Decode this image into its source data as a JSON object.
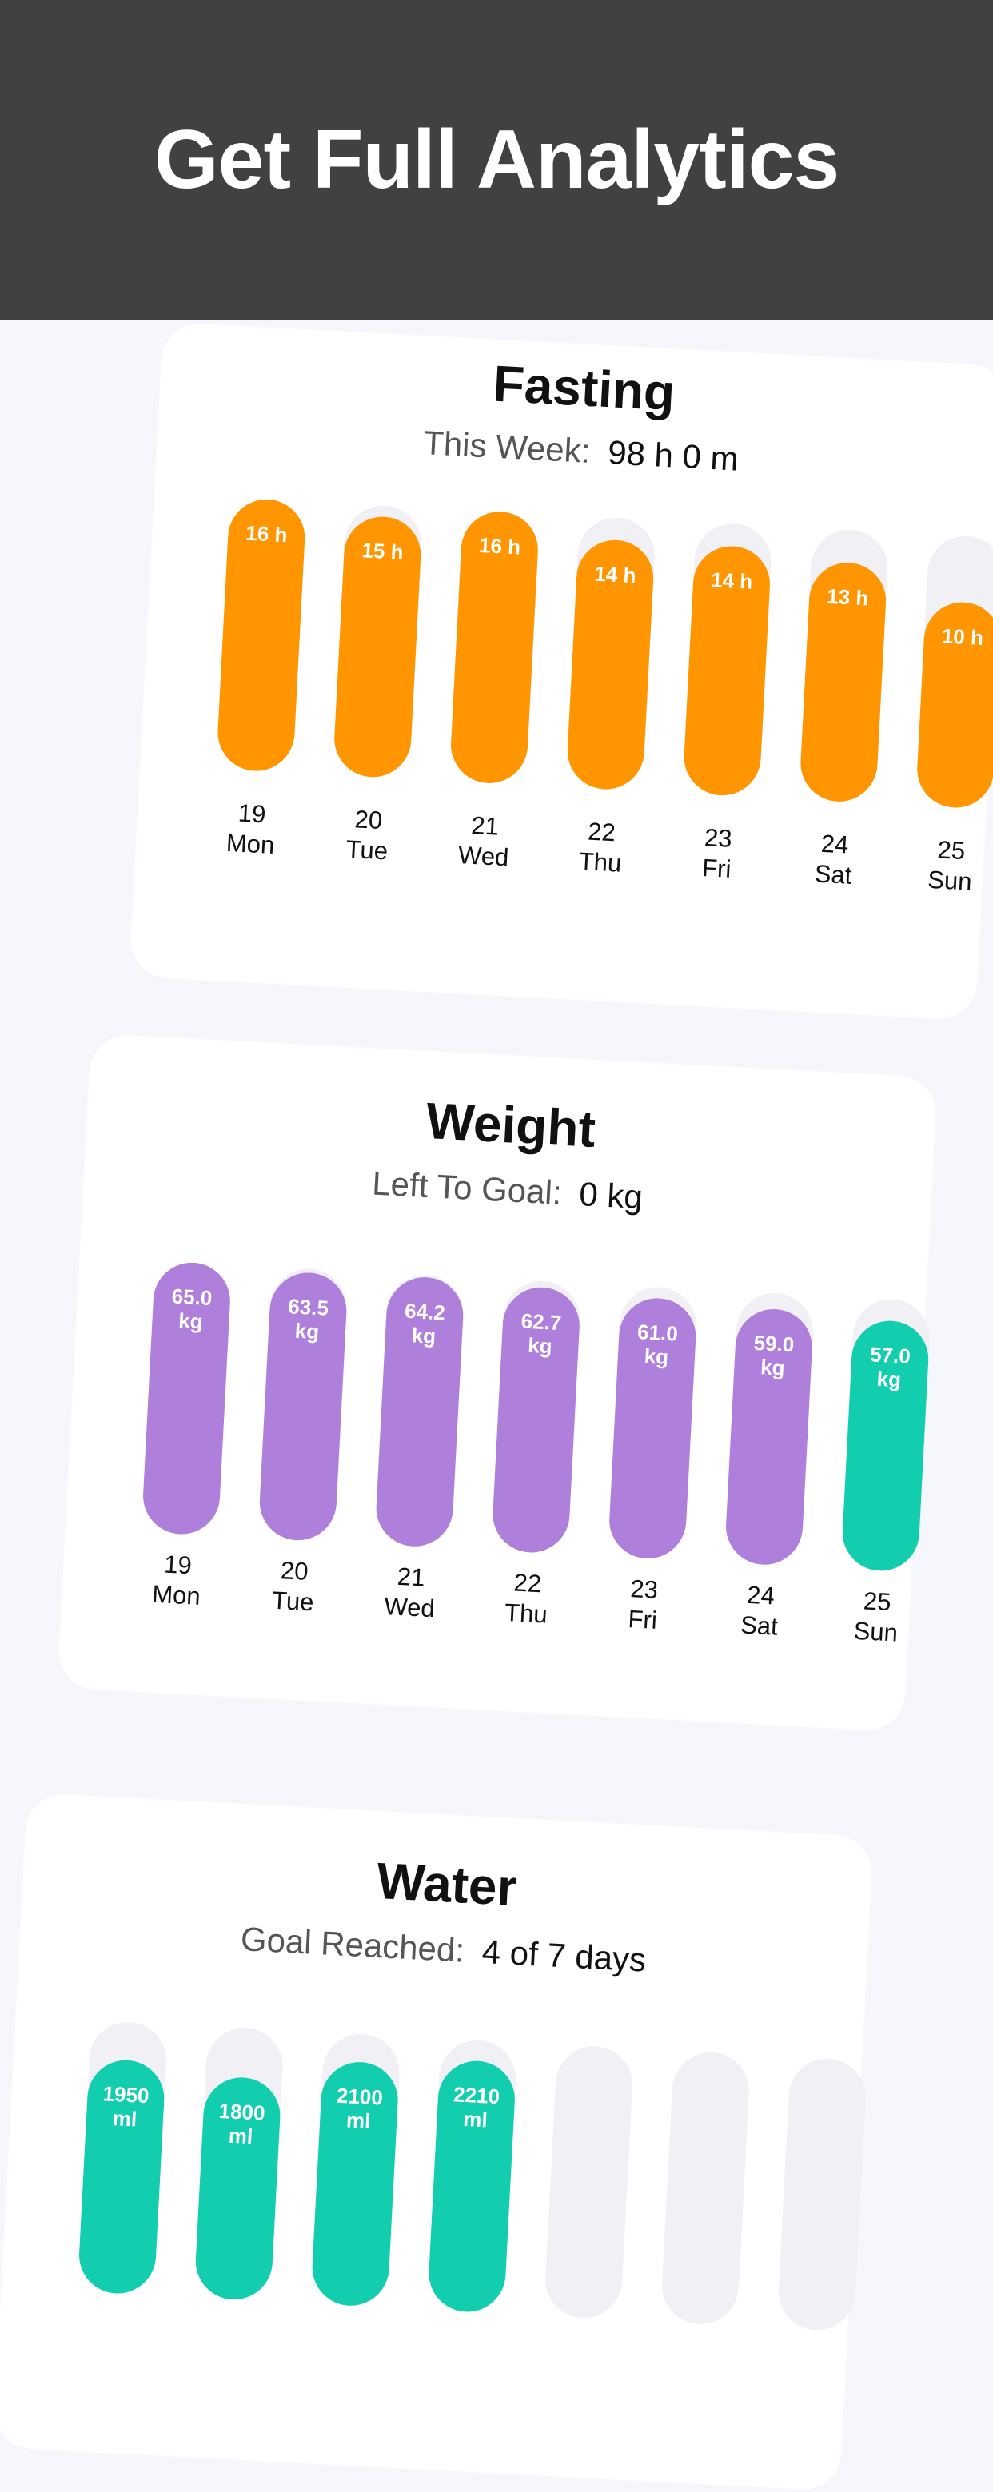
{
  "header": {
    "title": "Get Full Analytics"
  },
  "colors": {
    "fasting": "#ff9500",
    "weight": "#af7fdc",
    "goal": "#12ceae",
    "track": "#f0f0f5"
  },
  "cards": [
    {
      "title": "Fasting",
      "sub_label": "This Week:",
      "sub_value": "98 h 0 m",
      "max": 16,
      "bars": [
        {
          "date": "19",
          "day": "Mon",
          "value": 16,
          "label": "16 h",
          "color": "fasting"
        },
        {
          "date": "20",
          "day": "Tue",
          "value": 15,
          "label": "15 h",
          "color": "fasting"
        },
        {
          "date": "21",
          "day": "Wed",
          "value": 16,
          "label": "16 h",
          "color": "fasting"
        },
        {
          "date": "22",
          "day": "Thu",
          "value": 14,
          "label": "14 h",
          "color": "fasting"
        },
        {
          "date": "23",
          "day": "Fri",
          "value": 14,
          "label": "14 h",
          "color": "fasting"
        },
        {
          "date": "24",
          "day": "Sat",
          "value": 13,
          "label": "13 h",
          "color": "fasting"
        },
        {
          "date": "25",
          "day": "Sun",
          "value": 10,
          "label": "10 h",
          "color": "fasting"
        }
      ]
    },
    {
      "title": "Weight",
      "sub_label": "Left To Goal:",
      "sub_value": "0 kg",
      "max": 65,
      "bars": [
        {
          "date": "19",
          "day": "Mon",
          "value": 65.0,
          "label": "65.0\nkg",
          "color": "weight"
        },
        {
          "date": "20",
          "day": "Tue",
          "value": 63.5,
          "label": "63.5\nkg",
          "color": "weight"
        },
        {
          "date": "21",
          "day": "Wed",
          "value": 64.2,
          "label": "64.2\nkg",
          "color": "weight"
        },
        {
          "date": "22",
          "day": "Thu",
          "value": 62.7,
          "label": "62.7\nkg",
          "color": "weight"
        },
        {
          "date": "23",
          "day": "Fri",
          "value": 61.0,
          "label": "61.0\nkg",
          "color": "weight"
        },
        {
          "date": "24",
          "day": "Sat",
          "value": 59.0,
          "label": "59.0\nkg",
          "color": "weight"
        },
        {
          "date": "25",
          "day": "Sun",
          "value": 57.0,
          "label": "57.0\nkg",
          "color": "goal"
        }
      ]
    },
    {
      "title": "Water",
      "sub_label": "Goal Reached:",
      "sub_value": "4 of 7 days",
      "max": 2500,
      "bars": [
        {
          "value": 1950,
          "label": "1950\nml",
          "color": "goal"
        },
        {
          "value": 1800,
          "label": "1800\nml",
          "color": "goal"
        },
        {
          "value": 2100,
          "label": "2100\nml",
          "color": "goal"
        },
        {
          "value": 2210,
          "label": "2210\nml",
          "color": "goal"
        },
        {
          "value": 0,
          "label": "",
          "color": "goal"
        },
        {
          "value": 0,
          "label": "",
          "color": "goal"
        },
        {
          "value": 0,
          "label": "",
          "color": "goal"
        }
      ]
    }
  ]
}
